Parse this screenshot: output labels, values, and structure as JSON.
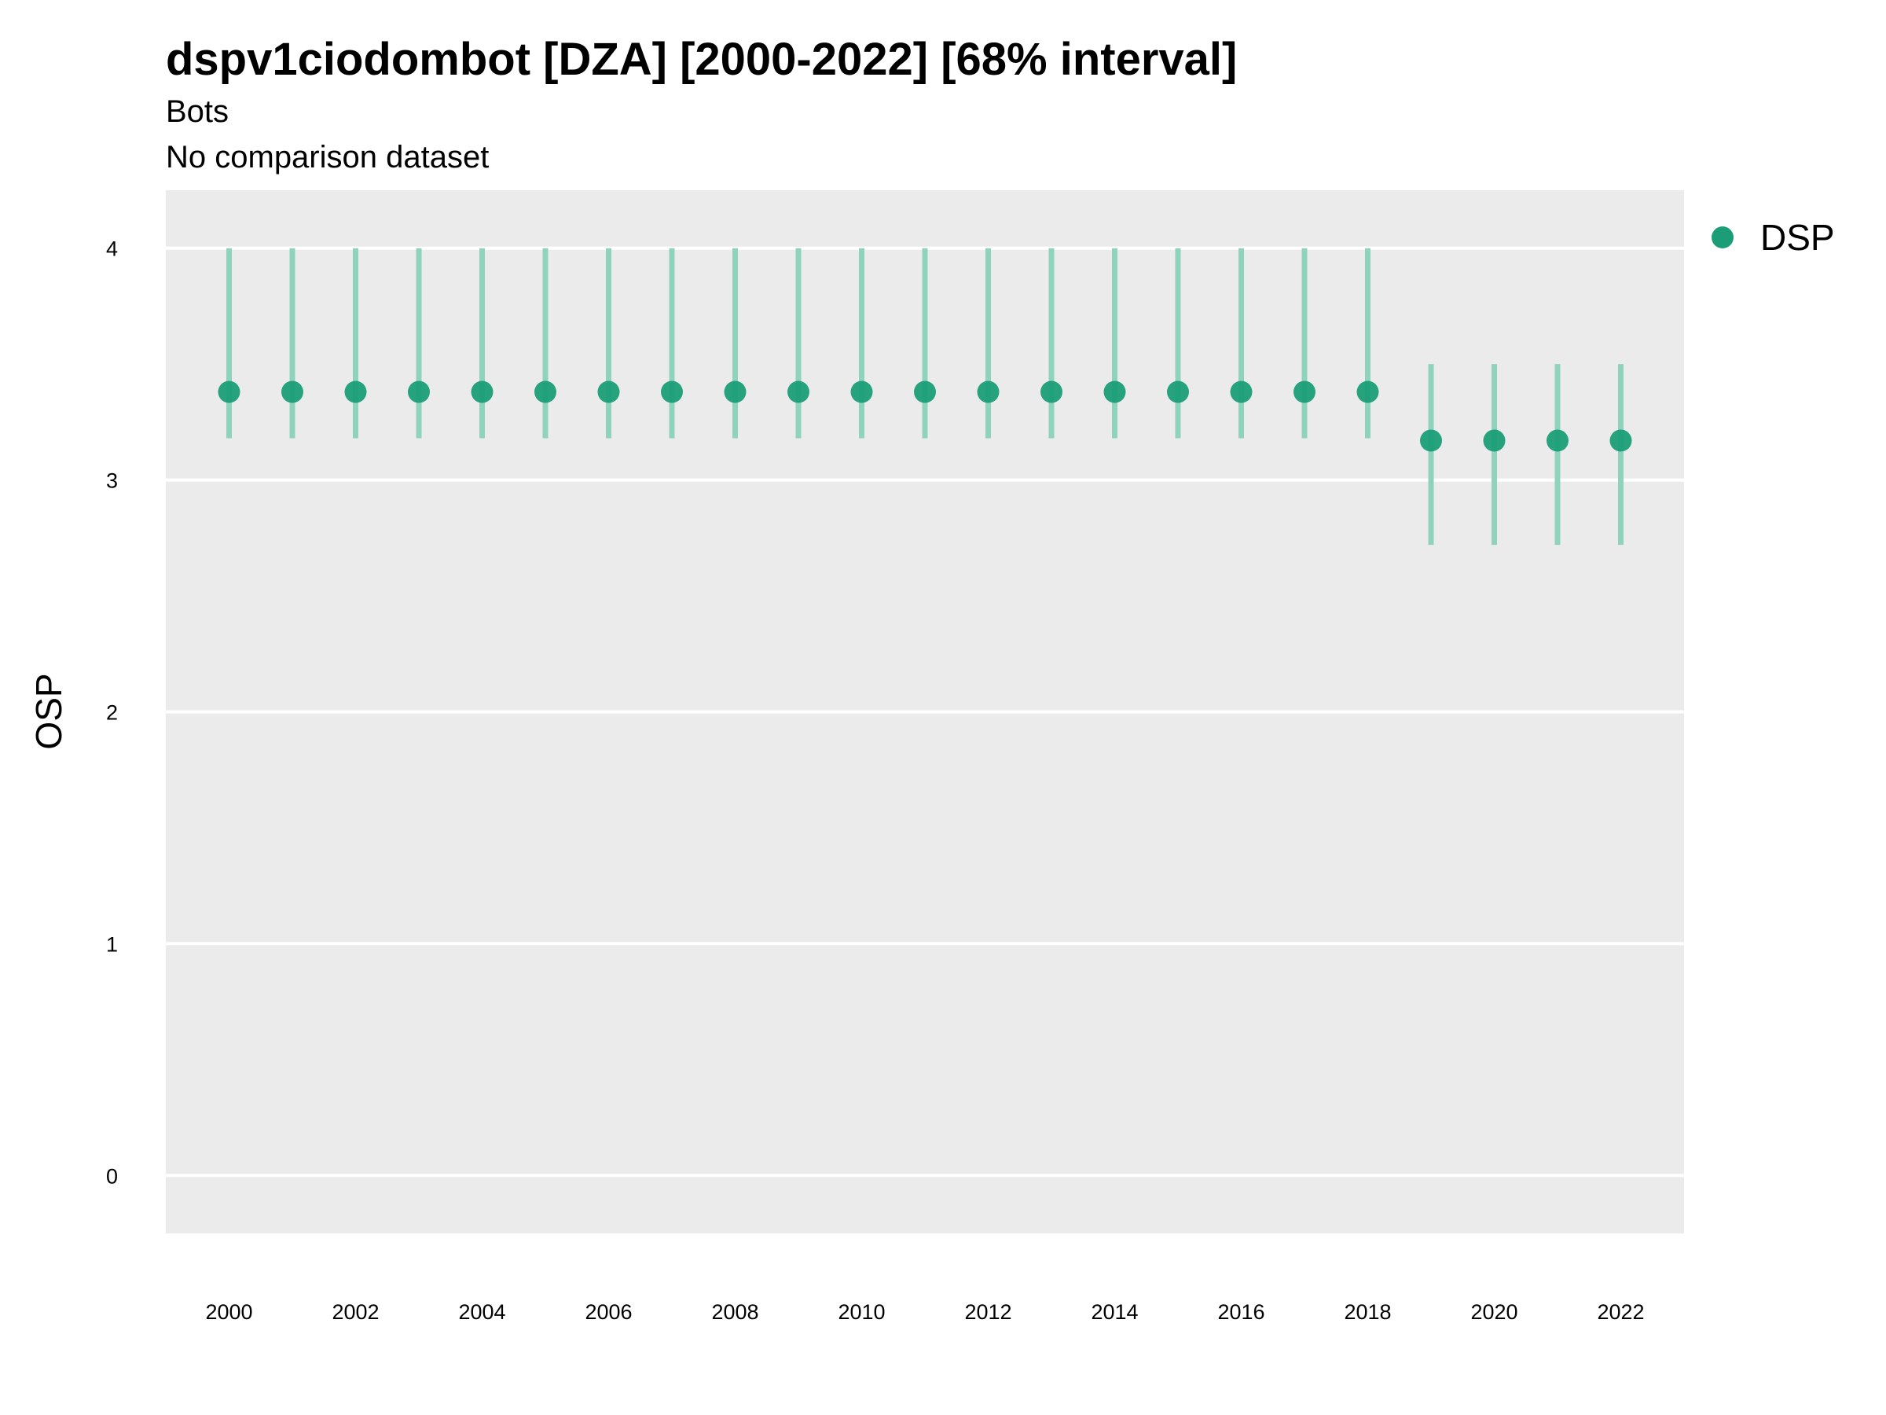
{
  "chart_data": {
    "type": "scatter",
    "title": "dspv1ciodombot [DZA] [2000-2022] [68% interval]",
    "subtitle": "Bots",
    "caption": "No comparison dataset",
    "xlabel": "",
    "ylabel": "OSP",
    "ylim": [
      -0.25,
      4.25
    ],
    "yticks": [
      "0",
      "1",
      "2",
      "3",
      "4"
    ],
    "xticks": [
      "2000",
      "2002",
      "2004",
      "2006",
      "2008",
      "2010",
      "2012",
      "2014",
      "2016",
      "2018",
      "2020",
      "2022"
    ],
    "grid": true,
    "legend_position": "right",
    "colors": {
      "series": "#1b9e77",
      "interval": "#8fd3bc",
      "panel": "#ebebeb",
      "grid": "#ffffff"
    },
    "series": [
      {
        "name": "DSP",
        "x": [
          2000,
          2001,
          2002,
          2003,
          2004,
          2005,
          2006,
          2007,
          2008,
          2009,
          2010,
          2011,
          2012,
          2013,
          2014,
          2015,
          2016,
          2017,
          2018,
          2019,
          2020,
          2021,
          2022
        ],
        "y": [
          3.38,
          3.38,
          3.38,
          3.38,
          3.38,
          3.38,
          3.38,
          3.38,
          3.38,
          3.38,
          3.38,
          3.38,
          3.38,
          3.38,
          3.38,
          3.38,
          3.38,
          3.38,
          3.38,
          3.17,
          3.17,
          3.17,
          3.17
        ],
        "lower": [
          3.18,
          3.18,
          3.18,
          3.18,
          3.18,
          3.18,
          3.18,
          3.18,
          3.18,
          3.18,
          3.18,
          3.18,
          3.18,
          3.18,
          3.18,
          3.18,
          3.18,
          3.18,
          3.18,
          2.72,
          2.72,
          2.72,
          2.72
        ],
        "upper": [
          4.0,
          4.0,
          4.0,
          4.0,
          4.0,
          4.0,
          4.0,
          4.0,
          4.0,
          4.0,
          4.0,
          4.0,
          4.0,
          4.0,
          4.0,
          4.0,
          4.0,
          4.0,
          4.0,
          3.5,
          3.5,
          3.5,
          3.5
        ]
      }
    ]
  }
}
